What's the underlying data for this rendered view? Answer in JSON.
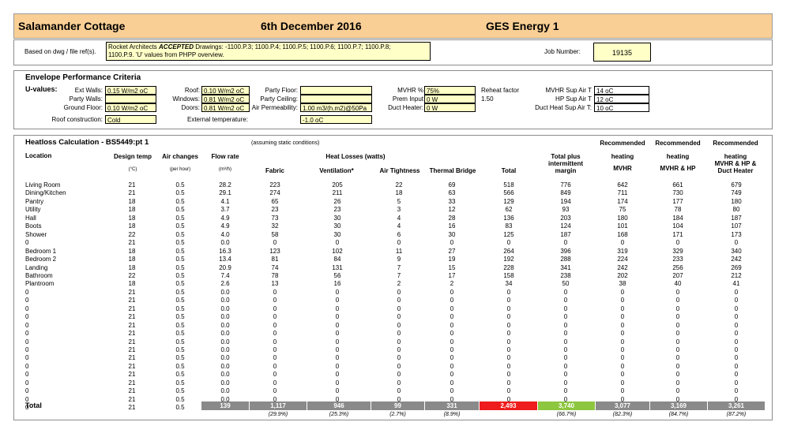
{
  "header": {
    "project": "Salamander Cottage",
    "date": "6th December 2016",
    "report": "GES Energy 1"
  },
  "info": {
    "based_on_label": "Based on dwg / file ref(s).",
    "based_on_value": "Rocket Architects ACCEPTED Drawings: -1100.P.3; 1100.P.4; 1100.P.5; 1100.P.6; 1100.P.7; 1100.P.8; 1100.P.9. 'U' values from PHPP overview.",
    "based_on_line1_a": "Rocket Architects ",
    "based_on_line1_b": "ACCEPTED",
    "based_on_line1_c": " Drawings: -1100.P.3; 1100.P.4; 1100.P.5; 1100.P.6; 1100.P.7; 1100.P.8;",
    "based_on_line2": "1100.P.9. 'U' values from PHPP overview.",
    "job_label": "Job Number:",
    "job_value": "19135"
  },
  "envelope": {
    "title": "Envelope Performance Criteria",
    "u_values_label": "U-values:",
    "ext_walls_label": "Ext Walls:",
    "ext_walls": "0.15 W/m2 oC",
    "party_walls_label": "Party Walls:",
    "party_walls": "",
    "ground_floor_label": "Ground Floor:",
    "ground_floor": "0.10 W/m2 oC",
    "roof_label": "Roof:",
    "roof": "0.10 W/m2 oC",
    "windows_label": "Windows:",
    "windows": "0.81 W/m2 oC",
    "doors_label": "Doors:",
    "doors": "0.81 W/m2 oC",
    "party_floor_label": "Party Floor:",
    "party_floor": "",
    "party_ceiling_label": "Party Ceiling:",
    "party_ceiling": "",
    "air_perm_label": "Air Permeability:",
    "air_perm": "1.00 m3/(h.m2)@50Pa",
    "mvhr_label": "MVHR %",
    "mvhr": "75%",
    "prem_input_label": "Prem Input",
    "prem_input": "0 W",
    "duct_heater_label": "Duct Heater:",
    "duct_heater": "0 W",
    "reheat_label": "Reheat factor",
    "reheat": "1.50",
    "mvhr_sup_label": "MVHR Sup Air T",
    "mvhr_sup": "14 oC",
    "hp_sup_label": "HP Sup Air T",
    "hp_sup": "12 oC",
    "duct_sup_label": "Duct Heat Sup Air T:",
    "duct_sup": "10 oC",
    "roof_construction_label": "Roof construction:",
    "roof_construction": "Cold",
    "ext_temp_label": "External temperature:",
    "ext_temp": "-1.0 oC"
  },
  "heatloss": {
    "title": "Heatloss Calculation - BS5449:pt 1",
    "note": "(assuming static conditions)",
    "headers": {
      "location": "Location",
      "design_temp": "Design temp",
      "air_changes": "Air changes",
      "flow_rate": "Flow rate",
      "heat_losses": "Heat Losses (watts)",
      "fabric": "Fabric",
      "ventilation": "Ventilation*",
      "air_tightness": "Air Tightness",
      "thermal_bridge": "Thermal Bridge",
      "total": "Total",
      "total_plus_1": "Total plus",
      "total_plus_2": "intermittent",
      "total_plus_3": "margin",
      "recommended": "Recommended",
      "heating": "heating",
      "mvhr": "MVHR",
      "mvhr_hp": "MVHR & HP",
      "mvhr_hp_duct_1": "MVHR & HP &",
      "mvhr_hp_duct_2": "Duct Heater"
    },
    "units": {
      "design_temp": "(°C)",
      "air_changes": "(per hour)",
      "flow_rate": "(m³/h)"
    },
    "rows": [
      [
        "Living Room",
        "21",
        "0.5",
        "28.2",
        "223",
        "205",
        "22",
        "69",
        "518",
        "776",
        "642",
        "661",
        "679"
      ],
      [
        "Dining/Kitchen",
        "21",
        "0.5",
        "29.1",
        "274",
        "211",
        "18",
        "63",
        "566",
        "849",
        "711",
        "730",
        "749"
      ],
      [
        "Pantry",
        "18",
        "0.5",
        "4.1",
        "65",
        "26",
        "5",
        "33",
        "129",
        "194",
        "174",
        "177",
        "180"
      ],
      [
        "Utility",
        "18",
        "0.5",
        "3.7",
        "23",
        "23",
        "3",
        "12",
        "62",
        "93",
        "75",
        "78",
        "80"
      ],
      [
        "Hall",
        "18",
        "0.5",
        "4.9",
        "73",
        "30",
        "4",
        "28",
        "136",
        "203",
        "180",
        "184",
        "187"
      ],
      [
        "Boots",
        "18",
        "0.5",
        "4.9",
        "32",
        "30",
        "4",
        "16",
        "83",
        "124",
        "101",
        "104",
        "107"
      ],
      [
        "Shower",
        "22",
        "0.5",
        "4.0",
        "58",
        "30",
        "6",
        "30",
        "125",
        "187",
        "168",
        "171",
        "173"
      ],
      [
        "0",
        "21",
        "0.5",
        "0.0",
        "0",
        "0",
        "0",
        "0",
        "0",
        "0",
        "0",
        "0",
        "0"
      ],
      [
        "Bedroom 1",
        "18",
        "0.5",
        "16.3",
        "123",
        "102",
        "11",
        "27",
        "264",
        "396",
        "319",
        "329",
        "340"
      ],
      [
        "Bedroom 2",
        "18",
        "0.5",
        "13.4",
        "81",
        "84",
        "9",
        "19",
        "192",
        "288",
        "224",
        "233",
        "242"
      ],
      [
        "Landing",
        "18",
        "0.5",
        "20.9",
        "74",
        "131",
        "7",
        "15",
        "228",
        "341",
        "242",
        "256",
        "269"
      ],
      [
        "Bathroom",
        "22",
        "0.5",
        "7.4",
        "78",
        "56",
        "7",
        "17",
        "158",
        "238",
        "202",
        "207",
        "212"
      ],
      [
        "Plantroom",
        "18",
        "0.5",
        "2.6",
        "13",
        "16",
        "2",
        "2",
        "34",
        "50",
        "38",
        "40",
        "41"
      ],
      [
        "0",
        "21",
        "0.5",
        "0.0",
        "0",
        "0",
        "0",
        "0",
        "0",
        "0",
        "0",
        "0",
        "0"
      ],
      [
        "0",
        "21",
        "0.5",
        "0.0",
        "0",
        "0",
        "0",
        "0",
        "0",
        "0",
        "0",
        "0",
        "0"
      ],
      [
        "0",
        "21",
        "0.5",
        "0.0",
        "0",
        "0",
        "0",
        "0",
        "0",
        "0",
        "0",
        "0",
        "0"
      ],
      [
        "0",
        "21",
        "0.5",
        "0.0",
        "0",
        "0",
        "0",
        "0",
        "0",
        "0",
        "0",
        "0",
        "0"
      ],
      [
        "0",
        "21",
        "0.5",
        "0.0",
        "0",
        "0",
        "0",
        "0",
        "0",
        "0",
        "0",
        "0",
        "0"
      ],
      [
        "0",
        "21",
        "0.5",
        "0.0",
        "0",
        "0",
        "0",
        "0",
        "0",
        "0",
        "0",
        "0",
        "0"
      ],
      [
        "0",
        "21",
        "0.5",
        "0.0",
        "0",
        "0",
        "0",
        "0",
        "0",
        "0",
        "0",
        "0",
        "0"
      ],
      [
        "0",
        "21",
        "0.5",
        "0.0",
        "0",
        "0",
        "0",
        "0",
        "0",
        "0",
        "0",
        "0",
        "0"
      ],
      [
        "0",
        "21",
        "0.5",
        "0.0",
        "0",
        "0",
        "0",
        "0",
        "0",
        "0",
        "0",
        "0",
        "0"
      ],
      [
        "0",
        "21",
        "0.5",
        "0.0",
        "0",
        "0",
        "0",
        "0",
        "0",
        "0",
        "0",
        "0",
        "0"
      ],
      [
        "0",
        "21",
        "0.5",
        "0.0",
        "0",
        "0",
        "0",
        "0",
        "0",
        "0",
        "0",
        "0",
        "0"
      ],
      [
        "0",
        "21",
        "0.5",
        "0.0",
        "0",
        "0",
        "0",
        "0",
        "0",
        "0",
        "0",
        "0",
        "0"
      ],
      [
        "0",
        "21",
        "0.5",
        "0.0",
        "0",
        "0",
        "0",
        "0",
        "0",
        "0",
        "0",
        "0",
        "0"
      ],
      [
        "0",
        "21",
        "0.5",
        "0.0",
        "0",
        "0",
        "0",
        "0",
        "0",
        "0",
        "0",
        "0",
        "0"
      ],
      [
        "0",
        "21",
        "0.5",
        "0.0",
        "0",
        "0",
        "0",
        "0",
        "0",
        "0",
        "0",
        "0",
        "0"
      ]
    ],
    "total_label": "Total",
    "totals": {
      "flow": "139",
      "fabric": "1,117",
      "ventilation": "946",
      "air_tightness": "99",
      "thermal_bridge": "331",
      "total": "2,493",
      "total_plus": "3,740",
      "mvhr": "3,077",
      "mvhr_hp": "3,169",
      "mvhr_hp_duct": "3,261"
    },
    "percents": {
      "fabric": "(29.9%)",
      "ventilation": "(25.3%)",
      "air_tightness": "(2.7%)",
      "thermal_bridge": "(8.9%)",
      "total_plus": "(66.7%)",
      "mvhr": "(82.3%)",
      "mvhr_hp": "(84.7%)",
      "mvhr_hp_duct": "(87.2%)"
    },
    "colors": {
      "total_bar": "#8a8a8a",
      "total_red": "#ee1c1c",
      "total_green": "#8dc63f"
    }
  }
}
